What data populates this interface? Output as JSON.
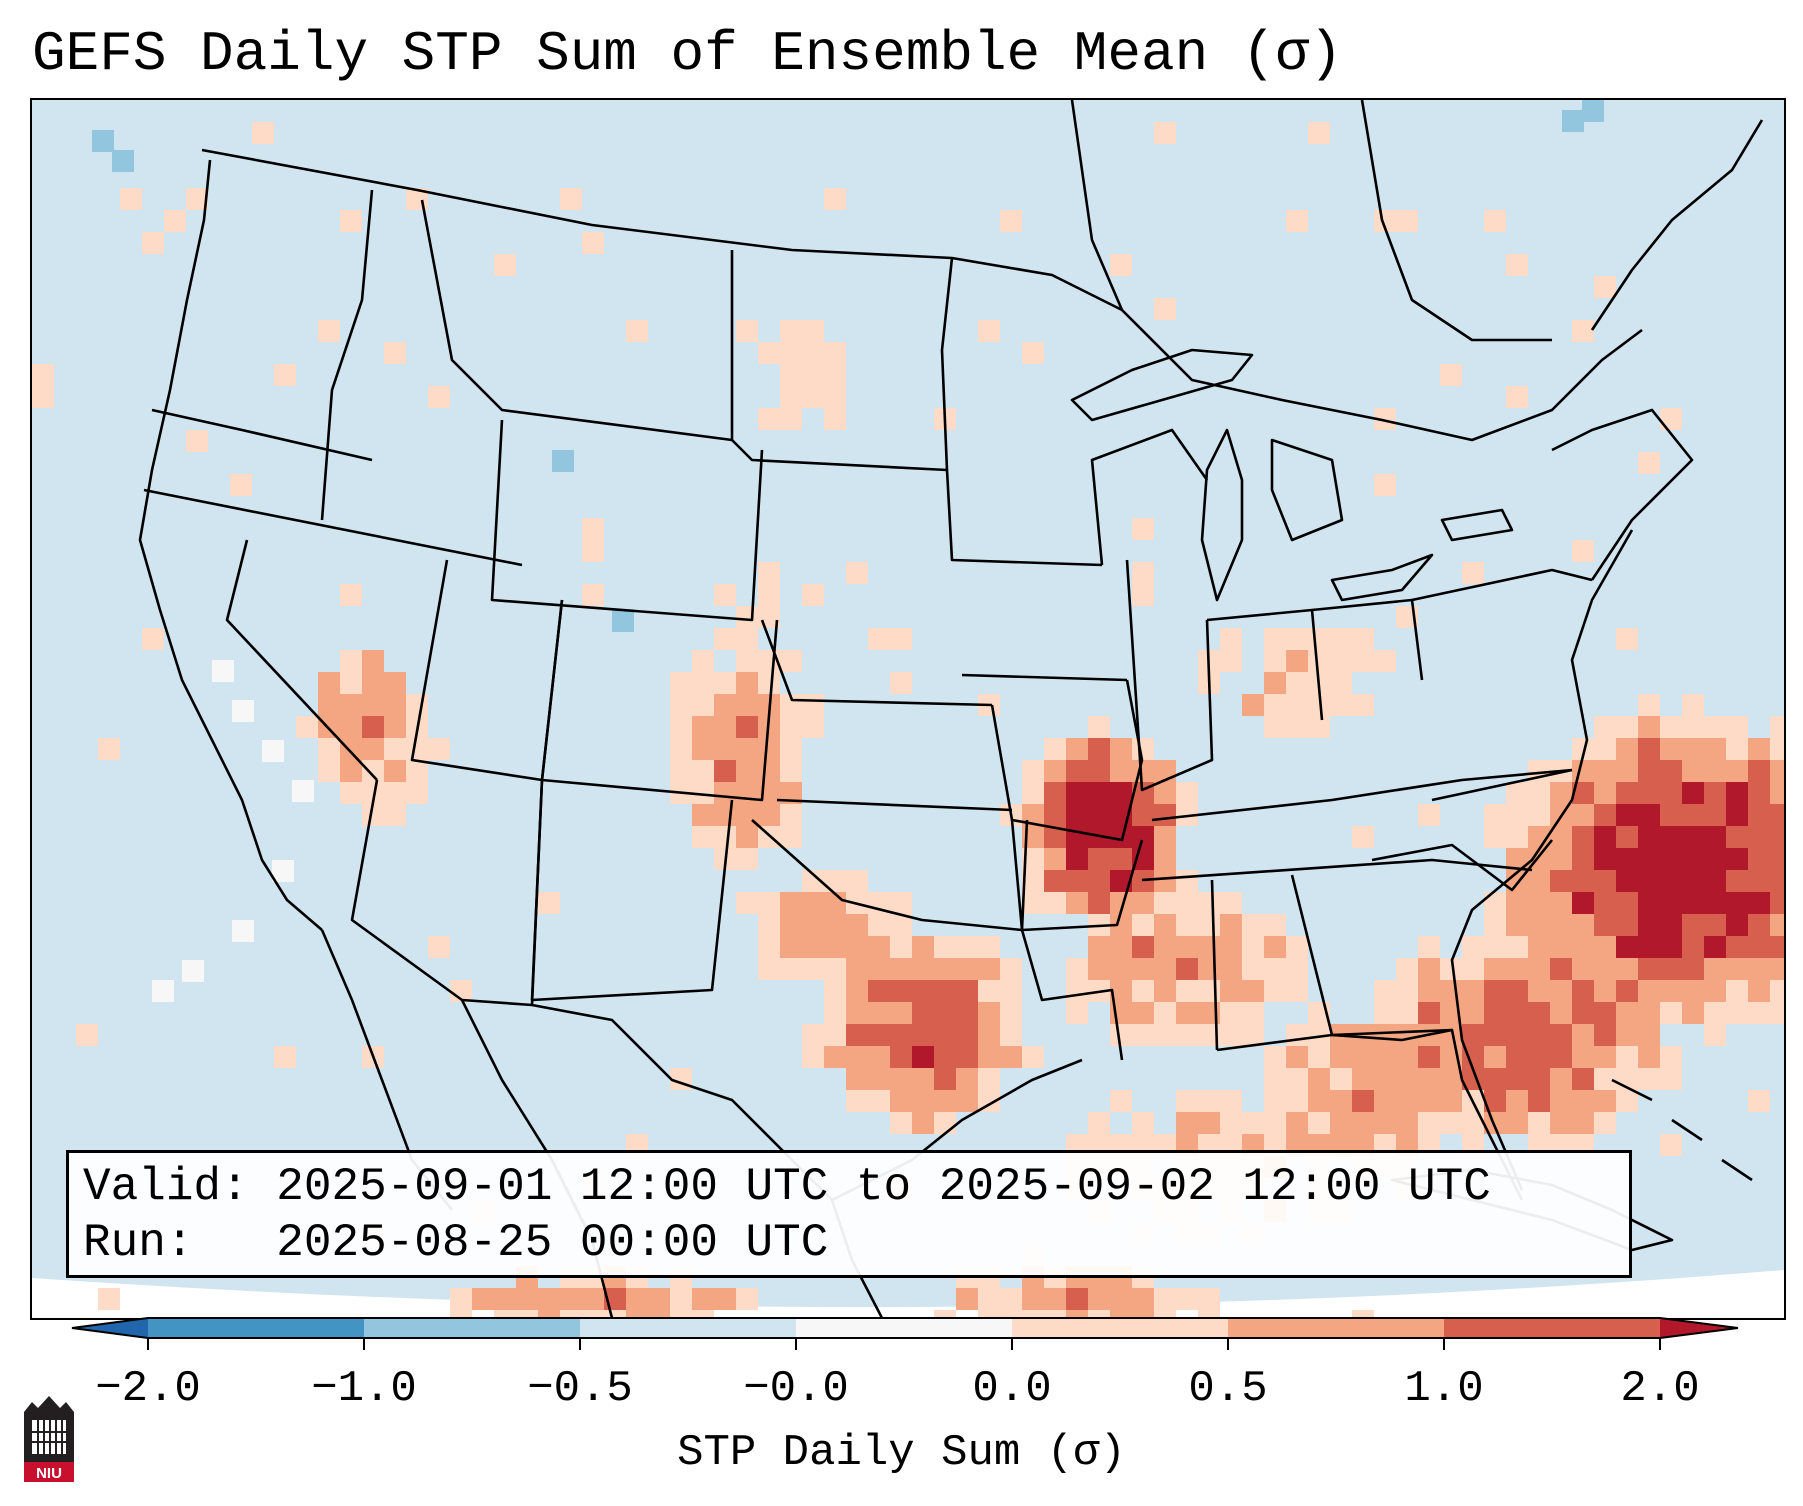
{
  "title": "GEFS Daily STP Sum of Ensemble Mean (σ)",
  "info": {
    "valid_label": "Valid:",
    "valid_value": "2025-09-01 12:00 UTC to 2025-09-02 12:00 UTC",
    "run_label": "Run:",
    "run_value": "2025-08-25 00:00 UTC"
  },
  "colorbar": {
    "label": "STP Daily Sum (σ)",
    "ticks": [
      "−2.0",
      "−1.0",
      "−0.5",
      "−0.0",
      "0.0",
      "0.5",
      "1.0",
      "2.0"
    ],
    "colors": {
      "below_min": "#2166ac",
      "bin_neg2_neg1": "#4393c3",
      "bin_neg1_neg05": "#92c5de",
      "bin_neg05_0": "#d1e5f0",
      "bin_zero": "#f7f7f7",
      "bin_0_05": "#fddbc7",
      "bin_05_1": "#f4a582",
      "bin_1_2": "#d6604d",
      "above_max": "#b2182b"
    }
  },
  "map": {
    "background_color": "#d1e5f0",
    "outside_domain_color": "#ffffff",
    "region": "Continental United States, southern Canada, northern Mexico, Gulf of Mexico, western Atlantic",
    "hotspots": [
      {
        "name": "Western Atlantic off Carolinas",
        "intensity": "above 2.0"
      },
      {
        "name": "Ozarks / Arkansas",
        "intensity": "above 2.0"
      },
      {
        "name": "Central Texas",
        "intensity": "1.0 to 2.0"
      },
      {
        "name": "Lower Mississippi Valley",
        "intensity": "0.5 to 1.0"
      }
    ]
  },
  "logo": {
    "text": "NIU",
    "color": "#c8102e"
  }
}
